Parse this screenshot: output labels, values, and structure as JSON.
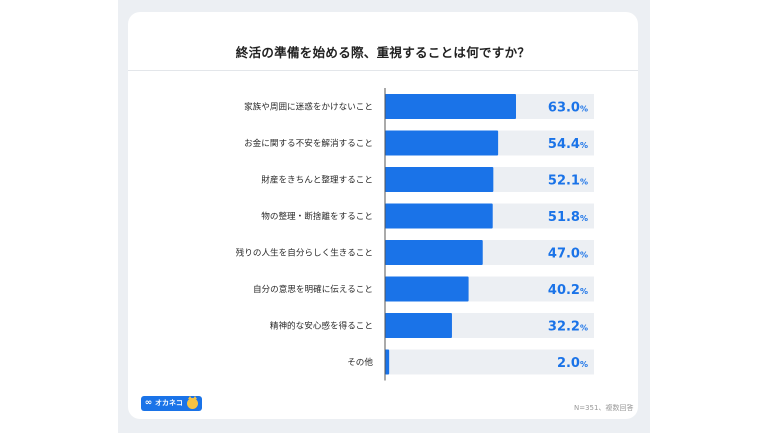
{
  "title": "終活の準備を始める際、重視することは何ですか？",
  "brand": {
    "name": "オカネコ",
    "logo_icon": "infinity-icon",
    "mascot_icon": "cat-icon"
  },
  "footnote": "N=351、複数回答",
  "colors": {
    "bar": "#1a73e8",
    "track": "#eceff3",
    "value_text": "#1a73e8"
  },
  "chart_data": {
    "type": "bar",
    "orientation": "horizontal",
    "categories": [
      "家族や周囲に迷惑をかけないこと",
      "お金に関する不安を解消すること",
      "財産をきちんと整理すること",
      "物の整理・断捨離をすること",
      "残りの人生を自分らしく生きること",
      "自分の意思を明確に伝えること",
      "精神的な安心感を得ること",
      "その他"
    ],
    "values": [
      63.0,
      54.4,
      52.1,
      51.8,
      47.0,
      40.2,
      32.2,
      2.0
    ],
    "value_labels": [
      "63.0",
      "54.4",
      "52.1",
      "51.8",
      "47.0",
      "40.2",
      "32.2",
      "2.0"
    ],
    "unit": "%",
    "xlim": [
      0,
      100
    ],
    "grid": false,
    "legend": "none"
  }
}
